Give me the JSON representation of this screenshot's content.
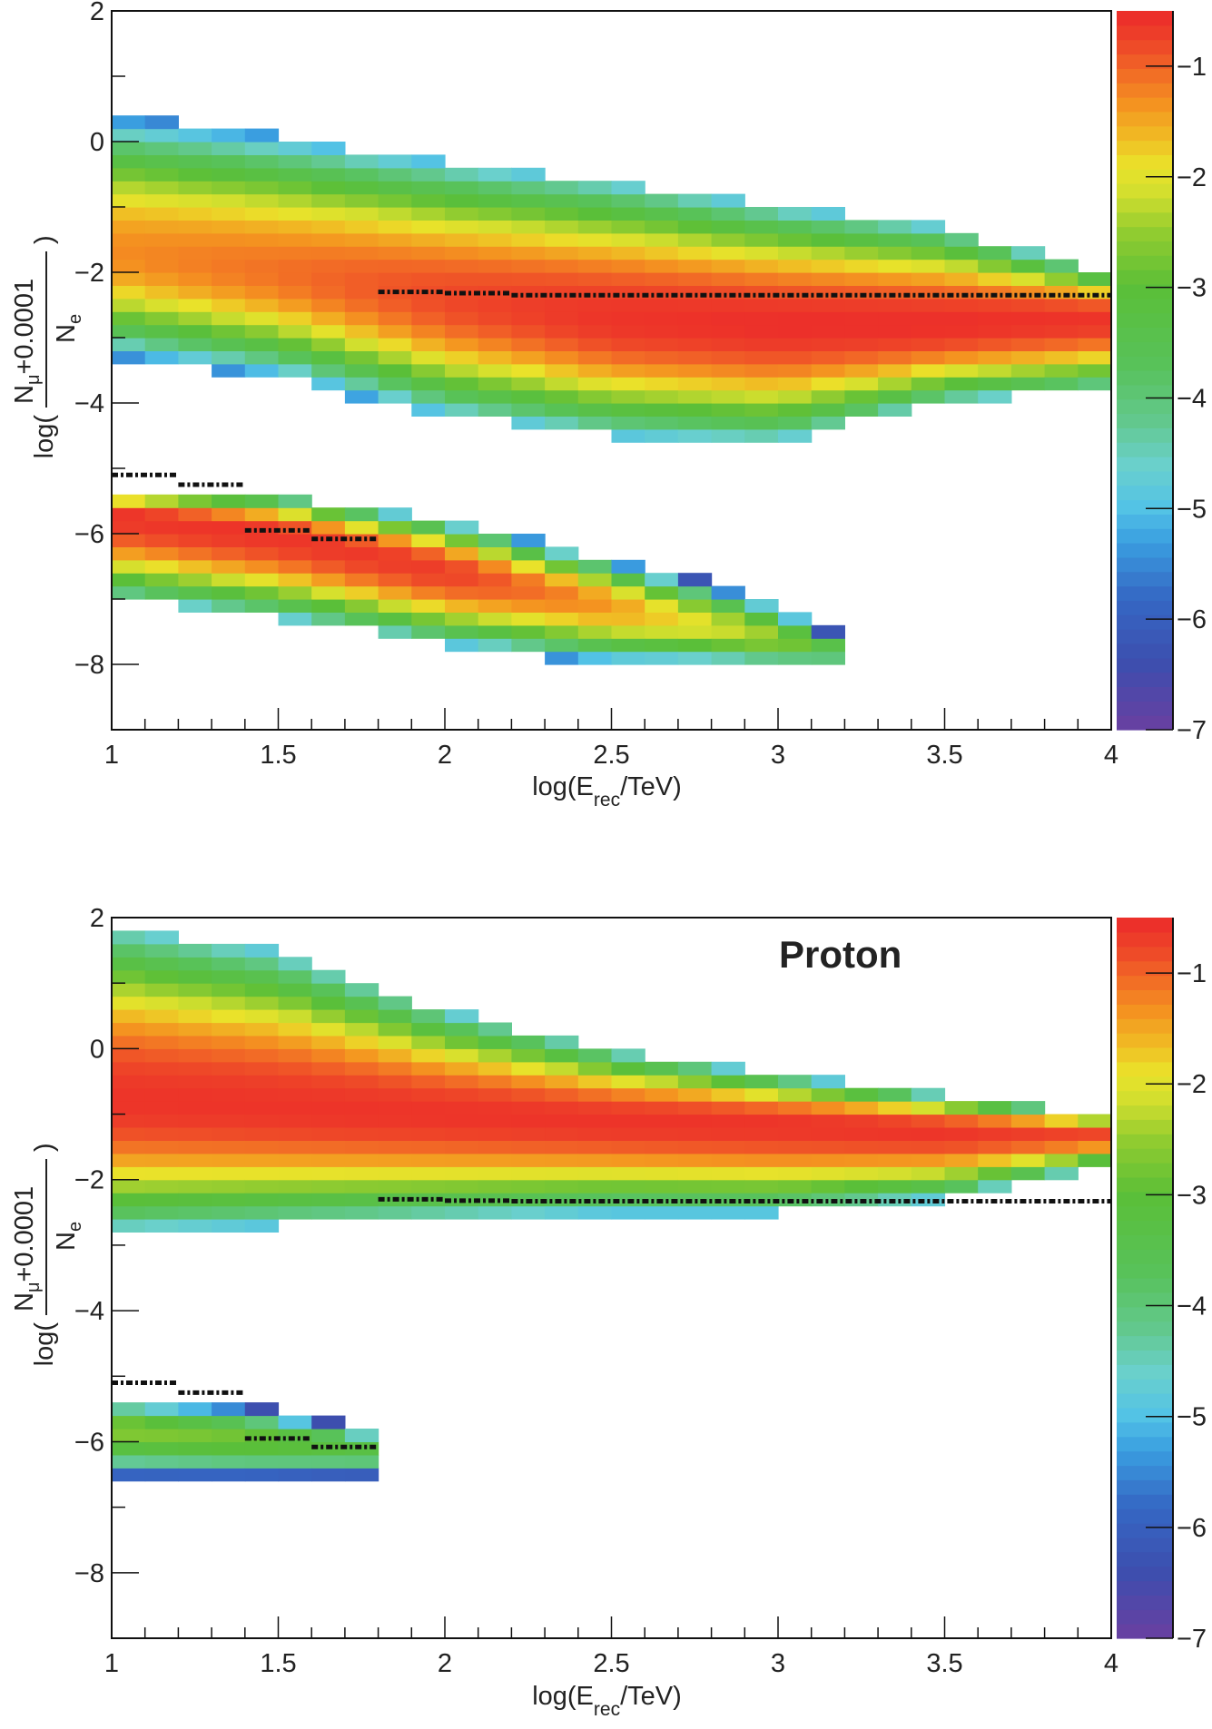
{
  "chart_data": [
    {
      "type": "heatmap",
      "panel_label": "",
      "xlabel": {
        "main": "log(E",
        "sub": "rec",
        "tail": "/TeV)"
      },
      "ylabel": {
        "prefix": "log(",
        "num_main": "N",
        "num_sub": "μ",
        "num_tail": "+0.0001",
        "den_main": "N",
        "den_sub": "e",
        "suffix": ")"
      },
      "xlim": [
        1,
        4
      ],
      "ylim": [
        -9,
        2
      ],
      "x_bin_width": 0.1,
      "y_bin_width": 0.2,
      "x_ticks": [
        "1",
        "1.5",
        "2",
        "2.5",
        "3",
        "3.5",
        "4"
      ],
      "x_tick_values": [
        1,
        1.5,
        2,
        2.5,
        3,
        3.5,
        4
      ],
      "y_ticks": [
        "2",
        "0",
        "−2",
        "−4",
        "−6",
        "−8"
      ],
      "y_tick_values": [
        2,
        0,
        -2,
        -4,
        -6,
        -8
      ],
      "z_range": [
        -7,
        -0.5
      ],
      "z_ticks": [
        "−1",
        "−2",
        "−3",
        "−4",
        "−5",
        "−6",
        "−7"
      ],
      "z_tick_values": [
        -1,
        -2,
        -3,
        -4,
        -5,
        -6,
        -7
      ],
      "bands": [
        {
          "x": [
            1,
            1.5,
            2,
            2.5,
            3,
            3.5,
            4
          ],
          "center": [
            -1.7,
            -2.0,
            -2.4,
            -2.7,
            -2.8,
            -2.8,
            -2.7
          ],
          "peak": [
            -1.3,
            -1.1,
            -0.8,
            -0.6,
            -0.55,
            -0.55,
            -0.6
          ],
          "top": [
            0.4,
            0.1,
            -0.3,
            -0.6,
            -1.0,
            -1.3,
            -2.0
          ],
          "bottom": [
            -3.3,
            -3.6,
            -4.2,
            -4.5,
            -4.6,
            -4.0,
            -3.8
          ]
        },
        {
          "x": [
            1,
            1.5,
            2,
            2.5,
            3,
            3.2
          ],
          "center": [
            -5.7,
            -6.0,
            -6.55,
            -7.1,
            -7.6,
            -7.8
          ],
          "peak": [
            -0.6,
            -0.6,
            -0.7,
            -1.4,
            -2.5,
            -3.5
          ],
          "top": [
            -5.3,
            -5.4,
            -5.8,
            -6.4,
            -7.0,
            -7.6
          ],
          "bottom": [
            -7.0,
            -7.3,
            -7.7,
            -8.0,
            -8.1,
            -8.1
          ]
        }
      ],
      "cut_lines": [
        {
          "x": [
            1.8,
            2.0
          ],
          "y": -2.3
        },
        {
          "x": [
            2.0,
            2.2
          ],
          "y": -2.32
        },
        {
          "x": [
            2.2,
            4.0
          ],
          "y": -2.35
        },
        {
          "x": [
            1.0,
            1.2
          ],
          "y": -5.1
        },
        {
          "x": [
            1.2,
            1.4
          ],
          "y": -5.25
        },
        {
          "x": [
            1.4,
            1.6
          ],
          "y": -5.95
        },
        {
          "x": [
            1.6,
            1.8
          ],
          "y": -6.08
        }
      ]
    },
    {
      "type": "heatmap",
      "panel_label": "Proton",
      "xlabel": {
        "main": "log(E",
        "sub": "rec",
        "tail": "/TeV)"
      },
      "ylabel": {
        "prefix": "log(",
        "num_main": "N",
        "num_sub": "μ",
        "num_tail": "+0.0001",
        "den_main": "N",
        "den_sub": "e",
        "suffix": ")"
      },
      "xlim": [
        1,
        4
      ],
      "ylim": [
        -9,
        2
      ],
      "x_bin_width": 0.1,
      "y_bin_width": 0.2,
      "x_ticks": [
        "1",
        "1.5",
        "2",
        "2.5",
        "3",
        "3.5",
        "4"
      ],
      "x_tick_values": [
        1,
        1.5,
        2,
        2.5,
        3,
        3.5,
        4
      ],
      "y_ticks": [
        "2",
        "0",
        "−2",
        "−4",
        "−6",
        "−8"
      ],
      "y_tick_values": [
        2,
        0,
        -2,
        -4,
        -6,
        -8
      ],
      "z_range": [
        -7,
        -0.5
      ],
      "z_ticks": [
        "−1",
        "−2",
        "−3",
        "−4",
        "−5",
        "−6",
        "−7"
      ],
      "z_tick_values": [
        -1,
        -2,
        -3,
        -4,
        -5,
        -6,
        -7
      ],
      "bands": [
        {
          "x": [
            1,
            1.5,
            2,
            2.5,
            3,
            3.5,
            4
          ],
          "center": [
            -0.8,
            -0.9,
            -1.0,
            -1.1,
            -1.15,
            -1.25,
            -1.3
          ],
          "peak": [
            -0.6,
            -0.6,
            -0.6,
            -0.6,
            -0.6,
            -0.6,
            -0.8
          ],
          "top": [
            1.9,
            1.5,
            0.6,
            0.0,
            -0.4,
            -0.7,
            -1.0
          ],
          "bottom": [
            -2.8,
            -2.7,
            -2.6,
            -2.5,
            -2.5,
            -2.3,
            -1.8
          ]
        },
        {
          "x": [
            1,
            1.4,
            1.8
          ],
          "center": [
            -5.8,
            -5.95,
            -6.1
          ],
          "peak": [
            -2.6,
            -2.8,
            -3.3
          ],
          "top": [
            -5.3,
            -5.4,
            -5.8
          ],
          "bottom": [
            -6.6,
            -6.6,
            -6.6
          ]
        }
      ],
      "cut_lines": [
        {
          "x": [
            1.8,
            2.0
          ],
          "y": -2.3
        },
        {
          "x": [
            2.0,
            2.2
          ],
          "y": -2.32
        },
        {
          "x": [
            2.2,
            4.0
          ],
          "y": -2.33
        },
        {
          "x": [
            1.0,
            1.2
          ],
          "y": -5.1
        },
        {
          "x": [
            1.2,
            1.4
          ],
          "y": -5.25
        },
        {
          "x": [
            1.4,
            1.6
          ],
          "y": -5.95
        },
        {
          "x": [
            1.6,
            1.8
          ],
          "y": -6.08
        }
      ]
    }
  ]
}
